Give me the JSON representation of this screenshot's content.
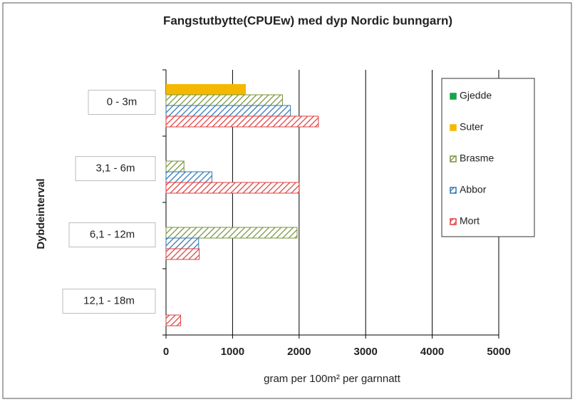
{
  "chart_data": {
    "type": "hbar",
    "title": "Fangstutbytte(CPUEw) med dyp  Nordic bunngarn)",
    "x_label": "gram per 100m² per garnnatt",
    "y_label": "Dybdeinterval",
    "categories": [
      "0 - 3m",
      "3,1 - 6m",
      "6,1 - 12m",
      "12,1 - 18m"
    ],
    "series": [
      {
        "name": "Gjedde",
        "color": "#1aa34a",
        "pattern": "solid",
        "values": [
          0,
          0,
          0,
          0
        ]
      },
      {
        "name": "Suter",
        "color": "#f5b800",
        "pattern": "solid",
        "values": [
          1200,
          0,
          0,
          0
        ]
      },
      {
        "name": "Brasme",
        "color": "#77933c",
        "pattern": "hatch",
        "values": [
          1750,
          270,
          1970,
          0
        ]
      },
      {
        "name": "Abbor",
        "color": "#2e75b6",
        "pattern": "hatch",
        "values": [
          1870,
          690,
          490,
          0
        ]
      },
      {
        "name": "Mort",
        "color": "#e03c3c",
        "pattern": "hatch",
        "values": [
          2290,
          2000,
          500,
          220
        ]
      }
    ],
    "xlim": [
      0,
      5000
    ],
    "xticks": [
      0,
      1000,
      2000,
      3000,
      4000,
      5000
    ],
    "grid": true,
    "legend": "right"
  }
}
